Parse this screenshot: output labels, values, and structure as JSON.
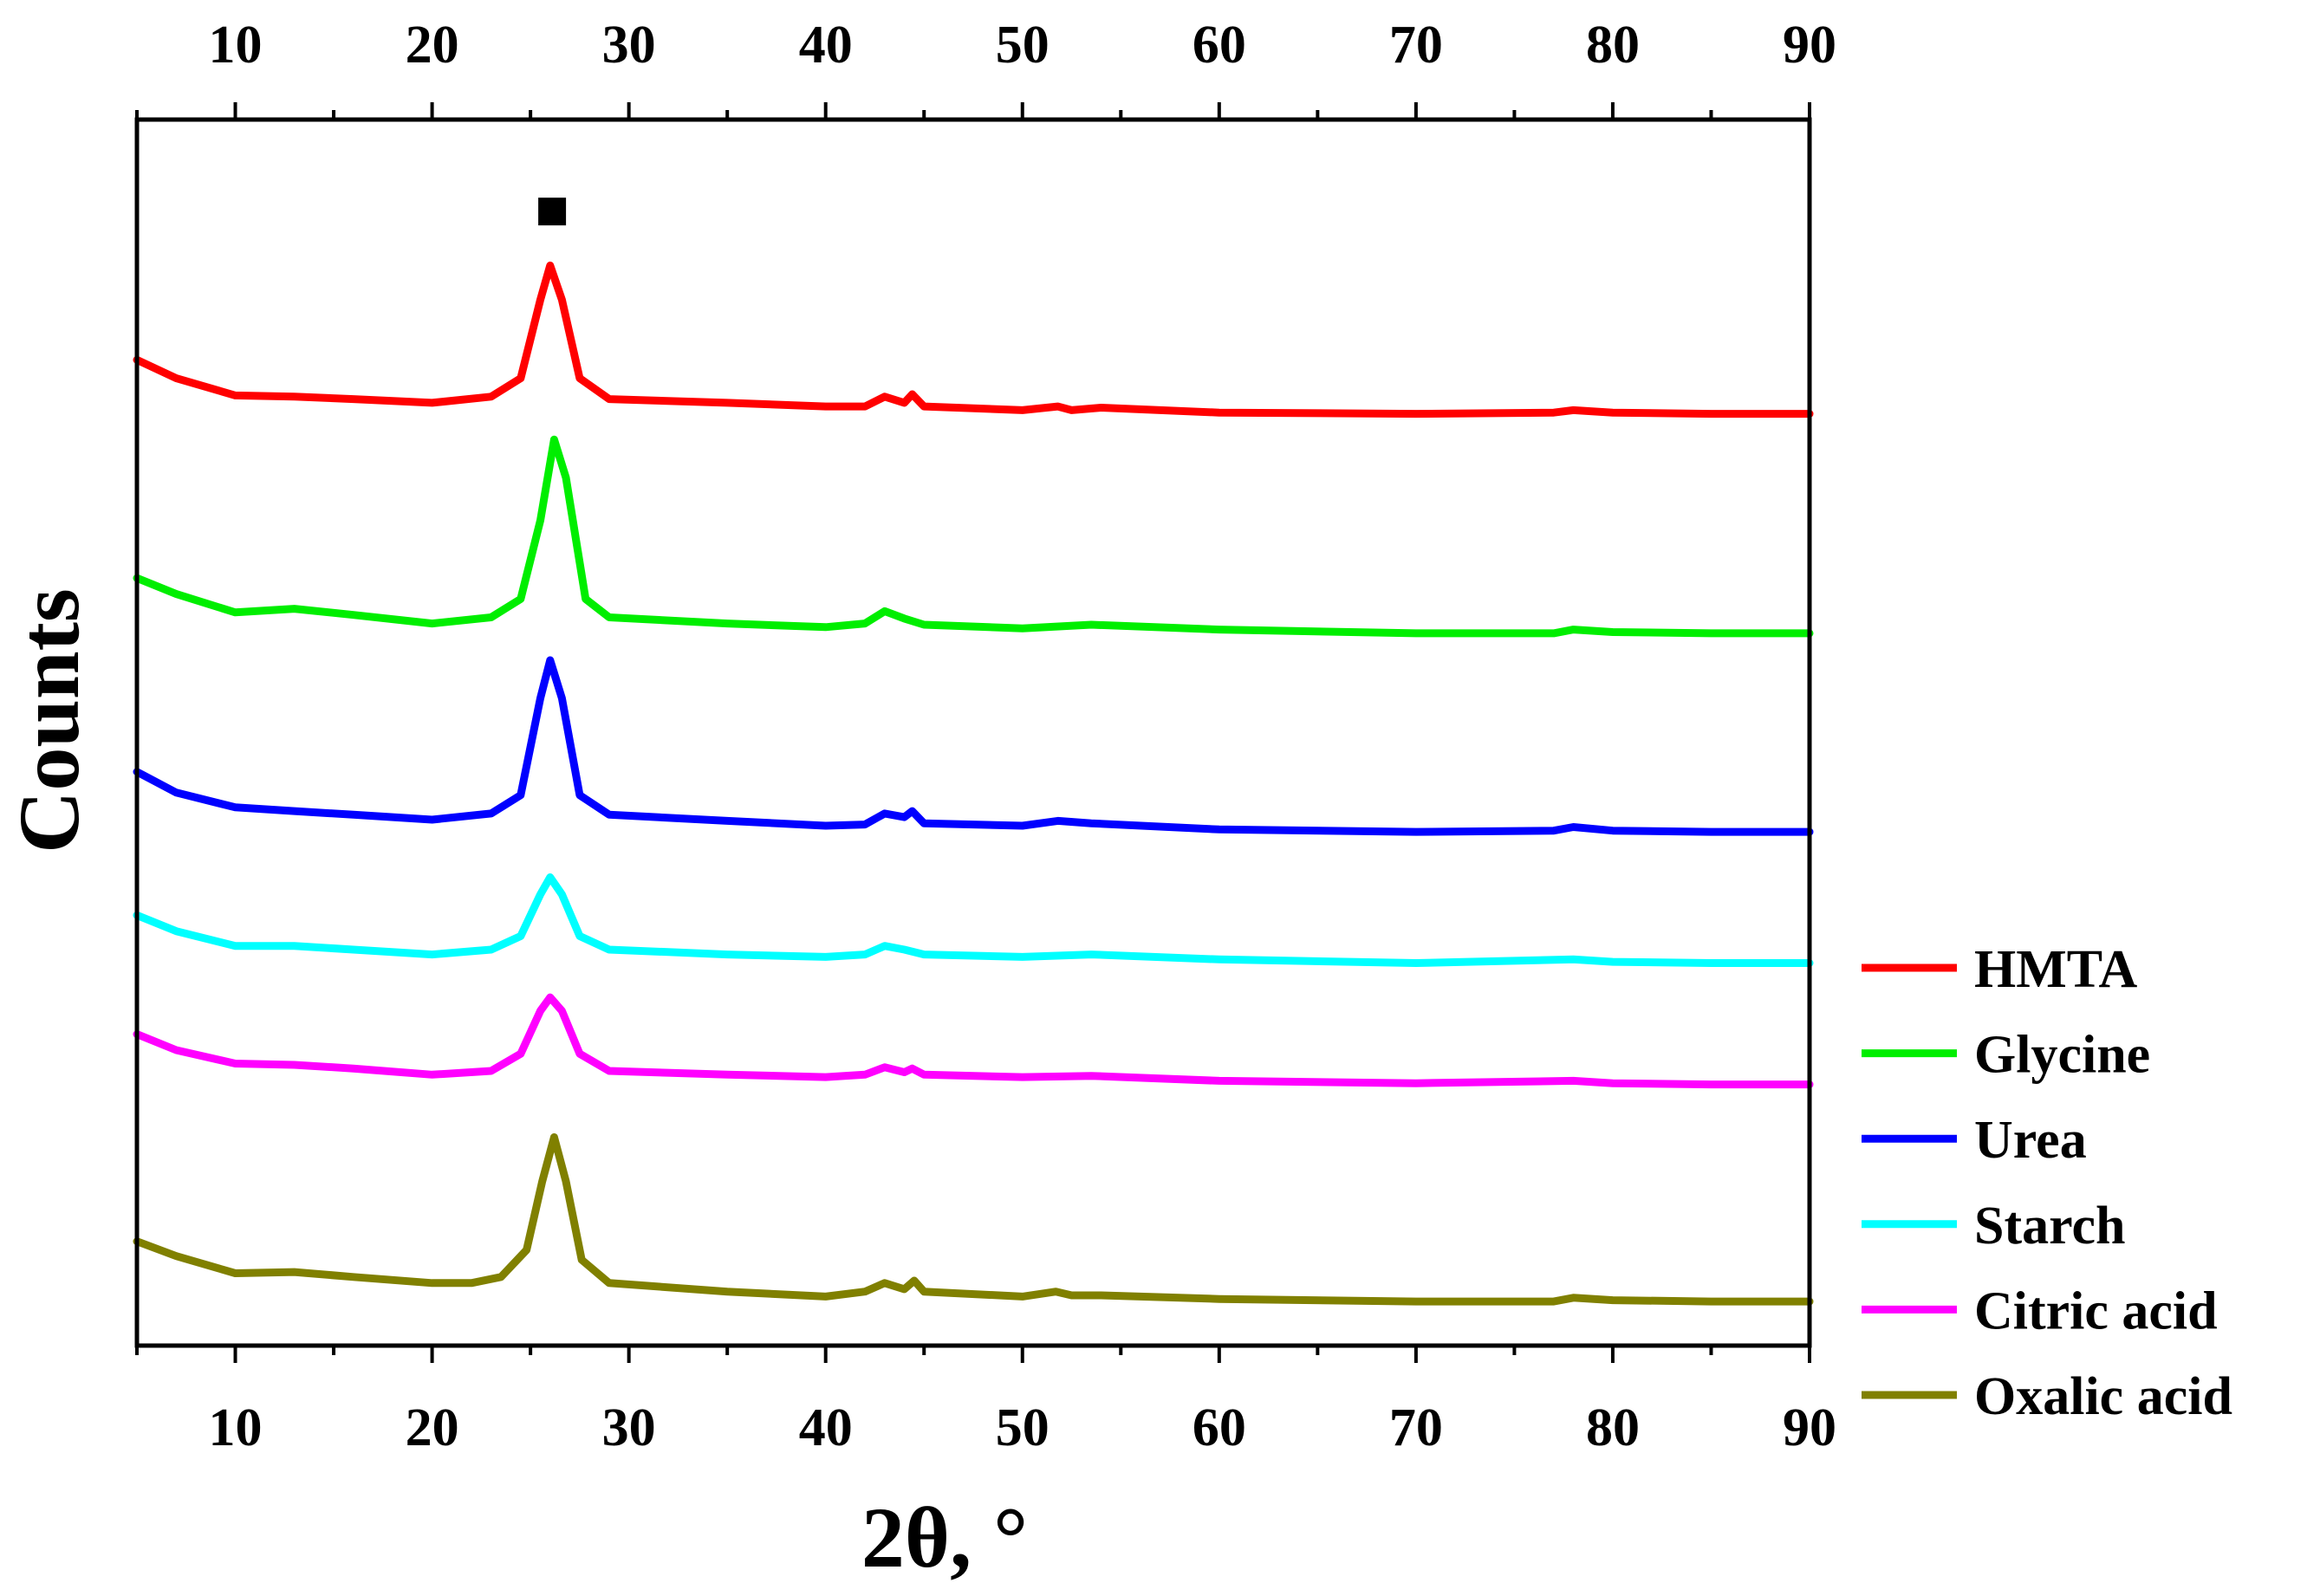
{
  "chart_data": {
    "type": "line",
    "title": "",
    "xlabel": "2θ, °",
    "ylabel": "Counts",
    "xlim": [
      5,
      90
    ],
    "ylim": [
      0,
      100
    ],
    "xticks": [
      "10",
      "20",
      "30",
      "40",
      "50",
      "60",
      "70",
      "80",
      "90"
    ],
    "xtick_values": [
      10,
      20,
      30,
      40,
      50,
      60,
      70,
      80,
      90
    ],
    "y_ticks_shown": false,
    "top_axis_mirrored": true,
    "grid": false,
    "legend_position": "bottom-right, outside plot",
    "annotations": [
      {
        "marker": "filled-square",
        "x": 26.1,
        "y": 92.5,
        "meaning": "main reflection marker"
      }
    ],
    "series": [
      {
        "name": "HMTA",
        "color": "#ff0000",
        "points": [
          [
            5,
            80.4
          ],
          [
            7,
            78.9
          ],
          [
            10,
            77.5
          ],
          [
            13,
            77.4
          ],
          [
            16,
            77.2
          ],
          [
            20,
            76.9
          ],
          [
            23,
            77.4
          ],
          [
            24.5,
            78.9
          ],
          [
            25.5,
            85.3
          ],
          [
            26,
            88.1
          ],
          [
            26.6,
            85.3
          ],
          [
            27.5,
            78.9
          ],
          [
            29,
            77.2
          ],
          [
            35,
            76.9
          ],
          [
            40,
            76.6
          ],
          [
            42,
            76.6
          ],
          [
            43,
            77.4
          ],
          [
            44,
            76.9
          ],
          [
            44.4,
            77.6
          ],
          [
            45,
            76.6
          ],
          [
            50,
            76.3
          ],
          [
            51.8,
            76.6
          ],
          [
            52.5,
            76.3
          ],
          [
            54,
            76.5
          ],
          [
            60,
            76.1
          ],
          [
            70,
            76.0
          ],
          [
            77,
            76.1
          ],
          [
            78,
            76.3
          ],
          [
            80,
            76.1
          ],
          [
            85,
            76.0
          ],
          [
            90,
            76.0
          ]
        ]
      },
      {
        "name": "Glycine",
        "color": "#00ee00",
        "points": [
          [
            5,
            62.6
          ],
          [
            7,
            61.3
          ],
          [
            10,
            59.8
          ],
          [
            13,
            60.1
          ],
          [
            16,
            59.6
          ],
          [
            20,
            58.9
          ],
          [
            23,
            59.4
          ],
          [
            24.5,
            60.9
          ],
          [
            25.5,
            67.3
          ],
          [
            26.2,
            73.9
          ],
          [
            26.8,
            70.8
          ],
          [
            27.8,
            60.9
          ],
          [
            29,
            59.4
          ],
          [
            35,
            58.9
          ],
          [
            40,
            58.6
          ],
          [
            42,
            58.9
          ],
          [
            43,
            59.9
          ],
          [
            44,
            59.3
          ],
          [
            45,
            58.8
          ],
          [
            50,
            58.5
          ],
          [
            53.5,
            58.8
          ],
          [
            60,
            58.4
          ],
          [
            70,
            58.1
          ],
          [
            77,
            58.1
          ],
          [
            78,
            58.4
          ],
          [
            80,
            58.2
          ],
          [
            85,
            58.1
          ],
          [
            90,
            58.1
          ]
        ]
      },
      {
        "name": "Urea",
        "color": "#0000ff",
        "points": [
          [
            5,
            46.8
          ],
          [
            7,
            45.1
          ],
          [
            10,
            43.9
          ],
          [
            13,
            43.6
          ],
          [
            16,
            43.3
          ],
          [
            20,
            42.9
          ],
          [
            23,
            43.4
          ],
          [
            24.5,
            44.9
          ],
          [
            25.5,
            52.8
          ],
          [
            26,
            55.9
          ],
          [
            26.6,
            52.8
          ],
          [
            27.5,
            44.9
          ],
          [
            29,
            43.3
          ],
          [
            35,
            42.8
          ],
          [
            40,
            42.4
          ],
          [
            42,
            42.5
          ],
          [
            43,
            43.4
          ],
          [
            44,
            43.1
          ],
          [
            44.4,
            43.6
          ],
          [
            45,
            42.6
          ],
          [
            50,
            42.4
          ],
          [
            51.8,
            42.8
          ],
          [
            53.5,
            42.6
          ],
          [
            60,
            42.1
          ],
          [
            70,
            41.9
          ],
          [
            77,
            42.0
          ],
          [
            78,
            42.3
          ],
          [
            80,
            42.0
          ],
          [
            85,
            41.9
          ],
          [
            90,
            41.9
          ]
        ]
      },
      {
        "name": "Starch",
        "color": "#00ffff",
        "points": [
          [
            5,
            35.1
          ],
          [
            7,
            33.8
          ],
          [
            10,
            32.6
          ],
          [
            13,
            32.6
          ],
          [
            16,
            32.3
          ],
          [
            20,
            31.9
          ],
          [
            23,
            32.3
          ],
          [
            24.5,
            33.4
          ],
          [
            25.5,
            36.8
          ],
          [
            26,
            38.2
          ],
          [
            26.6,
            36.8
          ],
          [
            27.5,
            33.4
          ],
          [
            29,
            32.3
          ],
          [
            35,
            31.9
          ],
          [
            40,
            31.7
          ],
          [
            42,
            31.9
          ],
          [
            43,
            32.6
          ],
          [
            44,
            32.3
          ],
          [
            45,
            31.9
          ],
          [
            50,
            31.7
          ],
          [
            53.5,
            31.9
          ],
          [
            60,
            31.5
          ],
          [
            70,
            31.2
          ],
          [
            78,
            31.5
          ],
          [
            80,
            31.3
          ],
          [
            85,
            31.2
          ],
          [
            90,
            31.2
          ]
        ]
      },
      {
        "name": "Citric acid",
        "color": "#ff00ff",
        "points": [
          [
            5,
            25.4
          ],
          [
            7,
            24.1
          ],
          [
            10,
            23.0
          ],
          [
            13,
            22.9
          ],
          [
            16,
            22.6
          ],
          [
            20,
            22.1
          ],
          [
            23,
            22.4
          ],
          [
            24.5,
            23.8
          ],
          [
            25.5,
            27.3
          ],
          [
            26,
            28.4
          ],
          [
            26.6,
            27.3
          ],
          [
            27.5,
            23.8
          ],
          [
            29,
            22.4
          ],
          [
            35,
            22.1
          ],
          [
            40,
            21.9
          ],
          [
            42,
            22.1
          ],
          [
            43,
            22.7
          ],
          [
            44,
            22.3
          ],
          [
            44.4,
            22.6
          ],
          [
            45,
            22.1
          ],
          [
            50,
            21.9
          ],
          [
            53.5,
            22.0
          ],
          [
            60,
            21.6
          ],
          [
            70,
            21.4
          ],
          [
            78,
            21.6
          ],
          [
            80,
            21.4
          ],
          [
            85,
            21.3
          ],
          [
            90,
            21.3
          ]
        ]
      },
      {
        "name": "Oxalic acid",
        "color": "#808000",
        "points": [
          [
            5,
            8.5
          ],
          [
            7,
            7.3
          ],
          [
            10,
            5.9
          ],
          [
            13,
            6.0
          ],
          [
            16,
            5.6
          ],
          [
            20,
            5.1
          ],
          [
            22,
            5.1
          ],
          [
            23.5,
            5.6
          ],
          [
            24.8,
            7.8
          ],
          [
            25.6,
            13.4
          ],
          [
            26.2,
            17.0
          ],
          [
            26.8,
            13.4
          ],
          [
            27.6,
            7.0
          ],
          [
            29,
            5.1
          ],
          [
            35,
            4.4
          ],
          [
            40,
            4.0
          ],
          [
            42,
            4.4
          ],
          [
            43,
            5.1
          ],
          [
            44,
            4.6
          ],
          [
            44.5,
            5.3
          ],
          [
            45,
            4.4
          ],
          [
            50,
            4.0
          ],
          [
            51.7,
            4.4
          ],
          [
            52.5,
            4.1
          ],
          [
            54,
            4.1
          ],
          [
            60,
            3.8
          ],
          [
            70,
            3.6
          ],
          [
            77,
            3.6
          ],
          [
            78,
            3.9
          ],
          [
            80,
            3.7
          ],
          [
            85,
            3.6
          ],
          [
            90,
            3.6
          ]
        ]
      }
    ]
  }
}
